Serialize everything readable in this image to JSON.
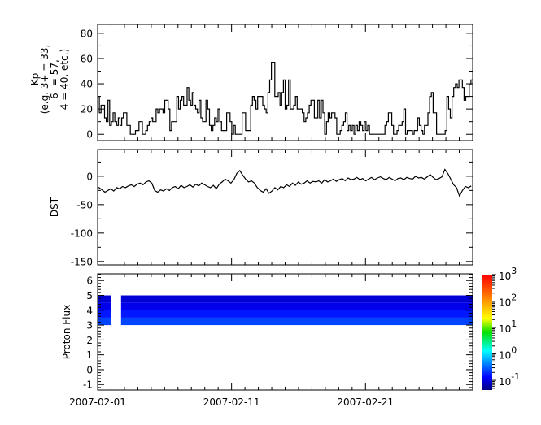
{
  "chart_data": [
    {
      "type": "line",
      "style": "step",
      "ylabel_lines": [
        "Kp",
        "(e.g. 3+ = 33,",
        "6- = 57,",
        "4 = 40, etc.)"
      ],
      "xlim": [
        "2007-02-01",
        "2007-03-01"
      ],
      "ylim": [
        -5,
        87
      ],
      "yticks": [
        0,
        20,
        40,
        60,
        80
      ],
      "values": [
        30,
        17,
        23,
        23,
        13,
        10,
        27,
        7,
        10,
        17,
        10,
        7,
        13,
        7,
        13,
        17,
        17,
        7,
        7,
        0,
        0,
        0,
        3,
        3,
        10,
        10,
        0,
        0,
        3,
        7,
        10,
        13,
        10,
        10,
        20,
        17,
        20,
        20,
        17,
        27,
        27,
        20,
        3,
        10,
        10,
        10,
        30,
        20,
        27,
        30,
        23,
        23,
        37,
        27,
        23,
        33,
        23,
        20,
        17,
        27,
        13,
        10,
        10,
        27,
        20,
        7,
        3,
        7,
        13,
        10,
        20,
        10,
        3,
        3,
        3,
        17,
        17,
        10,
        0,
        7,
        0,
        0,
        0,
        0,
        17,
        17,
        3,
        3,
        3,
        23,
        30,
        27,
        20,
        30,
        30,
        30,
        23,
        20,
        17,
        33,
        43,
        57,
        57,
        30,
        30,
        33,
        23,
        33,
        43,
        20,
        23,
        43,
        20,
        20,
        23,
        30,
        20,
        20,
        20,
        17,
        10,
        13,
        17,
        23,
        27,
        27,
        13,
        13,
        27,
        13,
        27,
        17,
        0,
        10,
        17,
        13,
        17,
        17,
        13,
        0,
        0,
        3,
        7,
        10,
        17,
        3,
        7,
        3,
        7,
        0,
        7,
        3,
        10,
        7,
        3,
        10,
        3,
        7,
        0,
        0,
        0,
        0,
        0,
        0,
        0,
        0,
        0,
        7,
        10,
        17,
        17,
        7,
        0,
        0,
        3,
        7,
        7,
        10,
        20,
        0,
        3,
        3,
        3,
        0,
        3,
        3,
        13,
        7,
        3,
        0,
        7,
        7,
        17,
        30,
        33,
        17,
        17,
        0,
        0,
        0,
        0,
        0,
        3,
        30,
        20,
        13,
        30,
        37,
        40,
        37,
        43,
        43,
        37,
        27,
        30,
        30,
        40,
        43
      ]
    },
    {
      "type": "line",
      "ylabel": "DST",
      "xlim": [
        "2007-02-01",
        "2007-03-01"
      ],
      "ylim": [
        -156,
        47
      ],
      "yticks": [
        0,
        -50,
        -100,
        -150
      ],
      "values": [
        -20,
        -24,
        -28,
        -25,
        -22,
        -26,
        -20,
        -22,
        -18,
        -20,
        -17,
        -15,
        -18,
        -14,
        -12,
        -15,
        -10,
        -8,
        -12,
        -25,
        -28,
        -24,
        -26,
        -22,
        -25,
        -20,
        -18,
        -22,
        -16,
        -20,
        -18,
        -15,
        -19,
        -14,
        -17,
        -12,
        -15,
        -18,
        -20,
        -16,
        -22,
        -14,
        -10,
        -5,
        -8,
        -12,
        -6,
        5,
        10,
        2,
        -5,
        -10,
        -8,
        -12,
        -20,
        -25,
        -28,
        -22,
        -30,
        -26,
        -20,
        -24,
        -18,
        -20,
        -15,
        -18,
        -12,
        -16,
        -10,
        -14,
        -12,
        -8,
        -12,
        -9,
        -10,
        -8,
        -12,
        -6,
        -10,
        -8,
        -5,
        -9,
        -6,
        -4,
        -8,
        -3,
        -6,
        -5,
        -2,
        -6,
        -4,
        -8,
        -5,
        -2,
        -6,
        -3,
        -1,
        -4,
        -6,
        -2,
        -5,
        -8,
        -4,
        -3,
        -6,
        -2,
        -4,
        -5,
        0,
        -3,
        -2,
        -5,
        -1,
        3,
        -2,
        -6,
        -4,
        -1,
        12,
        5,
        -5,
        -15,
        -20,
        -35,
        -25,
        -18,
        -20,
        -17
      ]
    },
    {
      "type": "heatmap",
      "ylabel": "Proton Flux",
      "xlim": [
        "2007-02-01",
        "2007-03-01"
      ],
      "ylim": [
        -1.37,
        6.45
      ],
      "yticks": [
        -1,
        0,
        1,
        2,
        3,
        4,
        5,
        6
      ],
      "data_gap": [
        "2007-02-02",
        "2007-02-02 18:00"
      ],
      "rows": [
        {
          "y": [
            4.5,
            5.0
          ],
          "value": 0.09
        },
        {
          "y": [
            4.0,
            4.5
          ],
          "value": 0.11
        },
        {
          "y": [
            3.5,
            4.0
          ],
          "value": 0.16
        },
        {
          "y": [
            3.0,
            3.5
          ],
          "value": 0.24
        }
      ],
      "colorbar": {
        "scale": "log",
        "range": [
          0.043,
          1000
        ],
        "tick_labels": [
          {
            "base": "10",
            "exp": "-1",
            "value": 0.1
          },
          {
            "base": "10",
            "exp": "0",
            "value": 1
          },
          {
            "base": "10",
            "exp": "1",
            "value": 10
          },
          {
            "base": "10",
            "exp": "2",
            "value": 100
          },
          {
            "base": "10",
            "exp": "3",
            "value": 1000
          }
        ],
        "colormap": "jet"
      }
    }
  ],
  "x_tick_labels": [
    {
      "date": "2007-02-01",
      "label": "2007-02-01"
    },
    {
      "date": "2007-02-11",
      "label": "2007-02-11"
    },
    {
      "date": "2007-02-21",
      "label": "2007-02-21"
    }
  ]
}
